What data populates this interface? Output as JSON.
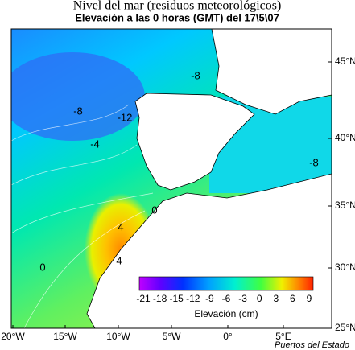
{
  "title": "Nivel del mar (residuos meteorológicos)",
  "subtitle": "Elevación a las 0 horas (GMT) del 17\\5\\07",
  "latitude_labels": [
    "45°N",
    "40°N",
    "35°N",
    "30°N",
    "25°N"
  ],
  "longitude_labels": [
    "20°W",
    "15°W",
    "10°W",
    "5°W",
    "0°",
    "5°E"
  ],
  "contour_labels": [
    "-8",
    "-12",
    "-8",
    "-4",
    "-8",
    "0",
    "4",
    "4",
    "0"
  ],
  "colorbar": {
    "ticks": [
      -21,
      -18,
      -15,
      -12,
      -9,
      -6,
      -3,
      0,
      3,
      6,
      9
    ],
    "label": "Elevación (cm)"
  },
  "credit": "Puertos del Estado"
}
